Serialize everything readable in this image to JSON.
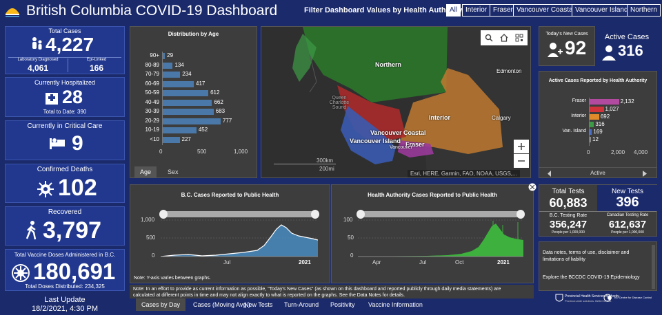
{
  "header": {
    "title": "British Columbia COVID-19 Dashboard",
    "filter_label": "Filter Dashboard Values by Health Authority:",
    "filters": [
      "All",
      "Interior",
      "Fraser",
      "Vancouver Coastal",
      "Vancouver Island",
      "Northern"
    ],
    "active_filter": "All"
  },
  "kpis": {
    "total_cases": {
      "label": "Total Cases",
      "value": "4,227",
      "lab_label": "Laboratory Diagnosed",
      "lab_value": "4,061",
      "epi_label": "Epi-Linked",
      "epi_value": "166"
    },
    "hospitalized": {
      "label": "Currently Hospitalized",
      "value": "28",
      "sub": "Total to Date: 390"
    },
    "critical": {
      "label": "Currently in Critical Care",
      "value": "9"
    },
    "deaths": {
      "label": "Confirmed Deaths",
      "value": "102"
    },
    "recovered": {
      "label": "Recovered",
      "value": "3,797"
    },
    "vaccine": {
      "label": "Total Vaccine Doses Administered in B.C.",
      "value": "180,691",
      "sub": "Total Doses Distributed: 234,325"
    },
    "last_update": {
      "label": "Last Update",
      "value": "18/2/2021, 4:30 PM"
    }
  },
  "age_panel": {
    "title": "Distribution by Age",
    "tabs": [
      "Age",
      "Sex"
    ],
    "active_tab": "Age"
  },
  "map": {
    "labels": {
      "northern": "Northern",
      "interior": "Interior",
      "vancouver_coastal": "Vancouver Coastal",
      "vancouver_island": "Vancouver Island",
      "fraser": "Fraser",
      "edmonton": "Edmonton",
      "calgary": "Calgary",
      "vancouver": "Vancouver",
      "queen_charlotte": "Queen Charlotte Sound"
    },
    "scale_km": "300km",
    "scale_mi": "200mi",
    "attribution": "Esri, HERE, Garmin, FAO, NOAA, USGS,..."
  },
  "right": {
    "new_cases_label": "Today's New Cases",
    "new_cases": "92",
    "active_cases_label": "Active Cases",
    "active_cases": "316",
    "ha_title": "Active Cases Reported by Health Authority",
    "ha_footer": "Active",
    "total_tests_label": "Total Tests",
    "total_tests": "60,883",
    "new_tests_label": "New Tests",
    "new_tests": "396",
    "bc_rate_label": "B.C. Testing Rate",
    "bc_rate": "356,247",
    "bc_rate_sub": "People per 1,000,000",
    "can_rate_label": "Canadian Testing Rate",
    "can_rate": "612,637",
    "can_rate_sub": "People per 1,000,000",
    "notes_line1": "Data notes, terms of use, disclaimer and",
    "notes_line2": "limitations of liability",
    "notes_line3": "Explore the BCCDC COVID-19 Epidemiology"
  },
  "bc_cases": {
    "title": "B.C. Cases Reported to Public Health",
    "yticks": [
      "1,000",
      "500",
      "0"
    ],
    "xticks": [
      "Jul",
      "2021"
    ],
    "note": "Note: Y-axis varies between graphs."
  },
  "ha_cases": {
    "title": "Health Authority Cases Reported to Public Health",
    "yticks": [
      "100",
      "50",
      "0"
    ],
    "xticks": [
      "Apr",
      "Jul",
      "Oct",
      "2021"
    ]
  },
  "footer_note": "Note: In an effort to provide as current information as possible, \"Today's New Cases\" (as shown on this dashboard and reported publicly through daily media statements) are",
  "footer_note2": "calculated at different points in time and may not align exactly to what is reported on the graphs. See the Data Notes for details.",
  "bottom_tabs": [
    "Cases by Day",
    "Cases (Moving Avg.)",
    "New Tests",
    "Turn-Around",
    "Positivity",
    "Vaccine Information"
  ],
  "bottom_active": "Cases by Day",
  "logos": {
    "pha": "Provincial Health Services Authority",
    "pha_sub": "Province-wide solutions. Better health.",
    "bccdc": "BC Centre for Disease Control"
  },
  "chart_data": [
    {
      "type": "bar",
      "title": "Distribution by Age",
      "categories": [
        "90+",
        "80-89",
        "70-79",
        "60-69",
        "50-59",
        "40-49",
        "30-39",
        "20-29",
        "10-19",
        "<10"
      ],
      "values": [
        29,
        134,
        234,
        417,
        612,
        662,
        683,
        777,
        452,
        227
      ],
      "xticks": [
        "0",
        "500",
        "1,000"
      ],
      "xlim": [
        0,
        1000
      ],
      "color": "#4a78a8"
    },
    {
      "type": "bar",
      "title": "Active Cases Reported by Health Authority",
      "categories": [
        "Fraser",
        "",
        "Interior",
        "",
        "Van. Island",
        ""
      ],
      "values": [
        2132,
        1027,
        692,
        316,
        169,
        12
      ],
      "colors": [
        "#b24aa0",
        "#d0343a",
        "#e08a2a",
        "#3d9a46",
        "#4a6fc8",
        "#888888"
      ],
      "xticks": [
        "0",
        "2,000",
        "4,000"
      ],
      "xlim": [
        0,
        4000
      ]
    },
    {
      "type": "area",
      "title": "B.C. Cases Reported to Public Health",
      "ylim": [
        0,
        1000
      ],
      "color": "#4a90c8"
    },
    {
      "type": "bar",
      "title": "Health Authority Cases Reported to Public Health",
      "ylim": [
        0,
        100
      ],
      "color": "#3db03d"
    }
  ],
  "colors": {
    "navy": "#1b2a6b",
    "panel": "#3d3d3d",
    "kpi": "#22388e"
  }
}
